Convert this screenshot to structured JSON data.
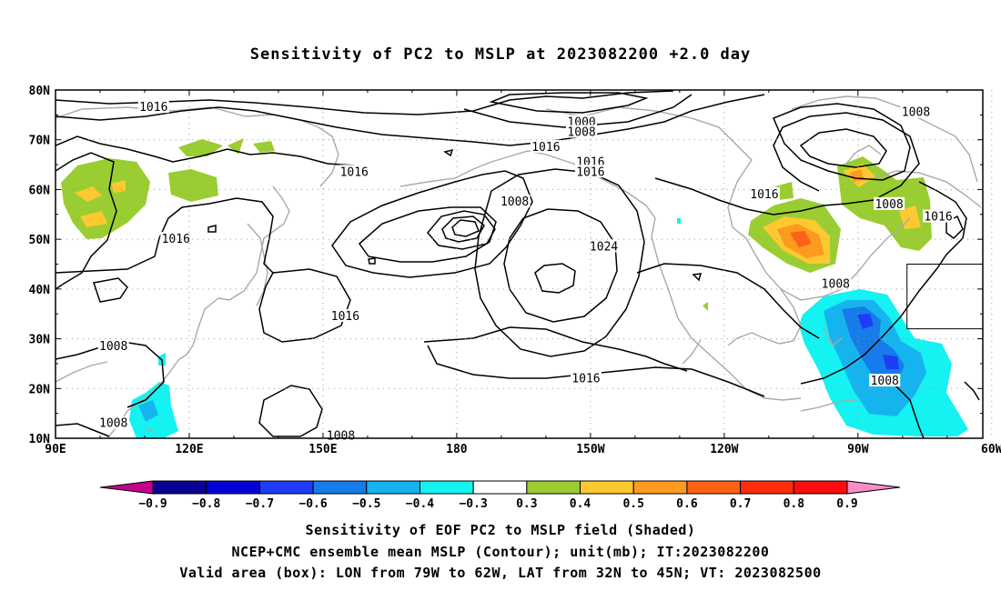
{
  "title": "Sensitivity of PC2 to MSLP at 2023082200 +2.0 day",
  "axes": {
    "lat_labels": [
      "80N",
      "70N",
      "60N",
      "50N",
      "40N",
      "30N",
      "20N",
      "10N"
    ],
    "lon_labels": [
      "90E",
      "120E",
      "150E",
      "180",
      "150W",
      "120W",
      "90W",
      "60W"
    ]
  },
  "contour_labels": [
    {
      "text": "1016",
      "lon": 112,
      "lat": 76.5
    },
    {
      "text": "1000",
      "lon": -152,
      "lat": 73.5
    },
    {
      "text": "1008",
      "lon": -152,
      "lat": 71.5
    },
    {
      "text": "1016",
      "lon": -160,
      "lat": 68.5
    },
    {
      "text": "1016",
      "lon": -150,
      "lat": 65.5
    },
    {
      "text": "1016",
      "lon": -150,
      "lat": 63.5
    },
    {
      "text": "1016",
      "lon": 157,
      "lat": 63.5
    },
    {
      "text": "1008",
      "lon": -77,
      "lat": 75.5
    },
    {
      "text": "1016",
      "lon": -111,
      "lat": 59
    },
    {
      "text": "1008",
      "lon": -167,
      "lat": 57.5
    },
    {
      "text": "1008",
      "lon": -83,
      "lat": 57
    },
    {
      "text": "1016",
      "lon": -72,
      "lat": 54.5
    },
    {
      "text": "1024",
      "lon": -147,
      "lat": 48.5
    },
    {
      "text": "1016",
      "lon": 117,
      "lat": 50
    },
    {
      "text": "1008",
      "lon": -95,
      "lat": 41
    },
    {
      "text": "1016",
      "lon": 155,
      "lat": 34.5
    },
    {
      "text": "1008",
      "lon": 103,
      "lat": 28.5
    },
    {
      "text": "1016",
      "lon": -151,
      "lat": 22
    },
    {
      "text": "1008",
      "lon": -84,
      "lat": 21.5
    },
    {
      "text": "1008",
      "lon": 103,
      "lat": 13
    },
    {
      "text": "1008",
      "lon": 154,
      "lat": 10.5
    }
  ],
  "colorbar": {
    "labels": [
      "-0.9",
      "-0.8",
      "-0.7",
      "-0.6",
      "-0.5",
      "-0.4",
      "-0.3",
      "0.3",
      "0.4",
      "0.5",
      "0.6",
      "0.7",
      "0.8",
      "0.9"
    ],
    "colors": [
      "#0a0093",
      "#0000d6",
      "#1f3cf5",
      "#157ce9",
      "#16b4ef",
      "#14f2f1",
      "#ffffff",
      "#9acd32",
      "#fdc830",
      "#fd9a20",
      "#fd6213",
      "#fd2d0b",
      "#fb0d0d"
    ],
    "low_end": "#c6008a",
    "high_end": "#f98dc6"
  },
  "validity_box": {
    "lon_min": -79,
    "lon_max": -62,
    "lat_min": 32,
    "lat_max": 45
  },
  "caption": [
    "Sensitivity of EOF PC2 to MSLP field (Shaded)",
    "NCEP+CMC ensemble mean MSLP (Contour); unit(mb); IT:2023082200",
    "Valid area (box): LON from 79W to 62W, LAT from 32N to 45N; VT: 2023082500"
  ]
}
